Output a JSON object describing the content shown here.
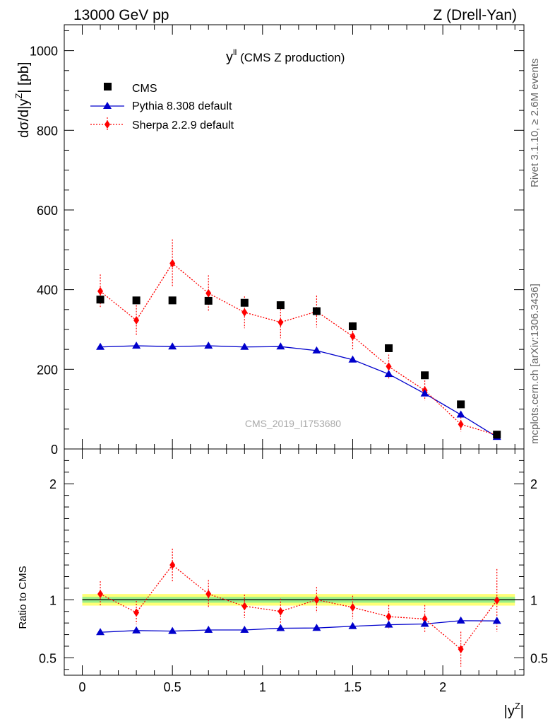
{
  "header": {
    "left": "13000 GeV pp",
    "right": "Z (Drell-Yan)"
  },
  "side_labels": {
    "rivet": "Rivet 3.1.10, ≥ 2.6M events",
    "mcplots": "mcplots.cern.ch [arXiv:1306.3436]"
  },
  "chart_data": {
    "type": "scatter",
    "title": "y",
    "title_superscript": "ll",
    "title_suffix": " (CMS Z production)",
    "watermark": "CMS_2019_I1753680",
    "xlabel": "|y",
    "xlabel_superscript": "Z",
    "xlabel_end": "|",
    "ylabel": "dσ/d|y",
    "ylabel_superscript": "Z",
    "ylabel_end": "| [pb]",
    "ratio_ylabel": "Ratio to CMS",
    "xlim": [
      -0.1,
      2.45
    ],
    "ylim": [
      0,
      1065
    ],
    "ratio_ylim": [
      0.35,
      2.3
    ],
    "x_ticks": [
      "0",
      "0.5",
      "1",
      "1.5",
      "2"
    ],
    "x_tick_values": [
      0,
      0.5,
      1,
      1.5,
      2
    ],
    "y_ticks": [
      "0",
      "200",
      "400",
      "600",
      "800",
      "1000"
    ],
    "y_tick_values": [
      0,
      200,
      400,
      600,
      800,
      1000
    ],
    "ratio_ticks": [
      "0.5",
      "1",
      "2"
    ],
    "ratio_tick_values": [
      0.5,
      1,
      2
    ],
    "x": [
      0.1,
      0.3,
      0.5,
      0.7,
      0.9,
      1.1,
      1.3,
      1.5,
      1.7,
      1.9,
      2.1,
      2.3
    ],
    "legend_position": "top-left",
    "series": [
      {
        "name": "CMS",
        "color": "#000000",
        "marker": "square",
        "values": [
          375,
          373,
          373,
          372,
          367,
          361,
          346,
          308,
          253,
          185,
          112,
          36
        ],
        "errors": [
          5,
          5,
          5,
          5,
          5,
          5,
          5,
          5,
          5,
          5,
          4,
          3
        ]
      },
      {
        "name": "Pythia 8.308 default",
        "color": "#0000cc",
        "marker": "triangle",
        "line": "solid",
        "values": [
          256,
          259,
          257,
          259,
          256,
          257,
          247,
          224,
          188,
          139,
          86,
          30
        ],
        "ratio": [
          0.72,
          0.735,
          0.73,
          0.74,
          0.74,
          0.755,
          0.757,
          0.772,
          0.785,
          0.792,
          0.82,
          0.818
        ]
      },
      {
        "name": "Sherpa 2.2.9 default",
        "color": "#ff0000",
        "marker": "diamond",
        "line": "dotted",
        "values": [
          396,
          323,
          466,
          391,
          343,
          318,
          345,
          283,
          207,
          147,
          62,
          35
        ],
        "errors": [
          42,
          38,
          60,
          45,
          40,
          40,
          40,
          35,
          30,
          25,
          18,
          10
        ],
        "ratio": [
          1.05,
          0.89,
          1.3,
          1.05,
          0.945,
          0.9,
          1.0,
          0.935,
          0.855,
          0.835,
          0.575,
          0.995
        ],
        "ratio_errors": [
          0.11,
          0.1,
          0.14,
          0.12,
          0.1,
          0.11,
          0.11,
          0.1,
          0.1,
          0.12,
          0.15,
          0.27
        ]
      }
    ],
    "ratio_band": {
      "inner_color": "#99ee88",
      "outer_color": "#ffff77",
      "inner_halfwidth": 0.025,
      "outer_halfwidth": 0.05
    }
  }
}
